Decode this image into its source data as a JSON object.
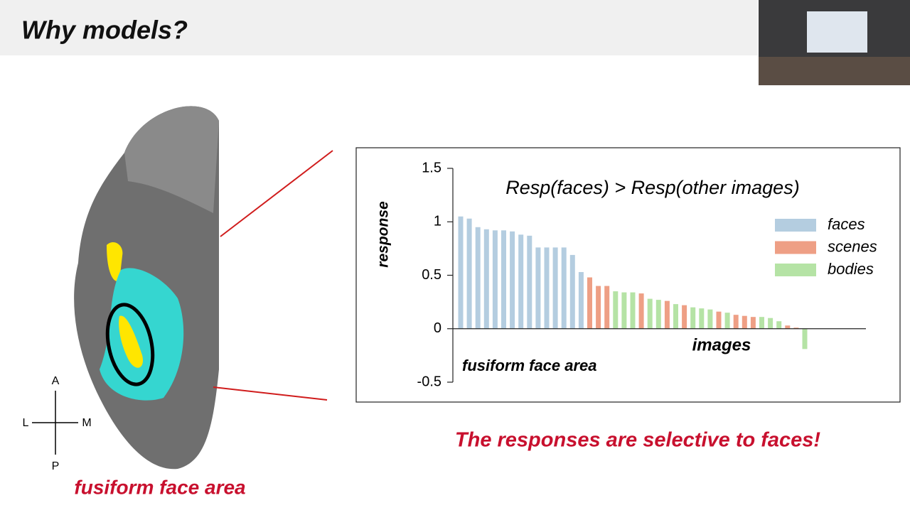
{
  "slide_title": "Why models?",
  "brain": {
    "caption": "fusiform face area",
    "compass": {
      "anterior": "A",
      "posterior": "P",
      "lateral": "L",
      "medial": "M"
    }
  },
  "takeaway": "The responses are selective to faces!",
  "chart_data": {
    "type": "bar",
    "annotation": "Resp(faces) > Resp(other images)",
    "region_label": "fusiform face area",
    "x_label": "images",
    "y_label": "response",
    "categories": [
      null,
      null,
      null,
      null,
      null,
      null,
      null,
      null,
      null,
      null,
      null,
      null,
      null,
      null,
      null,
      null,
      null,
      null,
      null,
      null,
      null,
      null,
      null,
      null,
      null,
      null,
      null,
      null,
      null,
      null,
      null,
      null,
      null,
      null,
      null,
      null,
      null,
      null,
      null,
      null,
      null
    ],
    "series": [
      {
        "name": "faces",
        "color": "#b4cde0",
        "values": [
          1.05,
          1.03,
          0.95,
          0.93,
          0.92,
          0.92,
          0.91,
          0.88,
          0.87,
          0.76,
          0.76,
          0.76,
          0.76,
          0.69,
          0.53,
          null,
          null,
          null,
          null,
          null,
          null,
          null,
          null,
          null,
          null,
          null,
          null,
          null,
          null,
          null,
          null,
          null,
          null,
          null,
          null,
          null,
          null,
          null,
          null,
          null,
          null
        ]
      },
      {
        "name": "scenes",
        "color": "#ee9f85",
        "values": [
          null,
          null,
          null,
          null,
          null,
          null,
          null,
          null,
          null,
          null,
          null,
          null,
          null,
          null,
          null,
          0.48,
          0.4,
          0.4,
          null,
          null,
          null,
          0.33,
          null,
          null,
          0.26,
          null,
          0.22,
          null,
          null,
          null,
          0.16,
          null,
          0.13,
          0.12,
          0.11,
          null,
          null,
          null,
          0.03,
          0.01,
          null
        ]
      },
      {
        "name": "bodies",
        "color": "#b5e3a5",
        "values": [
          null,
          null,
          null,
          null,
          null,
          null,
          null,
          null,
          null,
          null,
          null,
          null,
          null,
          null,
          null,
          null,
          null,
          null,
          0.35,
          0.34,
          0.34,
          null,
          0.28,
          0.27,
          null,
          0.23,
          null,
          0.2,
          0.19,
          0.18,
          null,
          0.15,
          null,
          null,
          null,
          0.11,
          0.1,
          0.07,
          null,
          null,
          -0.19
        ]
      }
    ],
    "ylim": [
      -0.5,
      1.5
    ],
    "yticks": [
      1.5,
      1,
      0.5,
      0,
      -0.5
    ],
    "legend": "upper-right"
  }
}
